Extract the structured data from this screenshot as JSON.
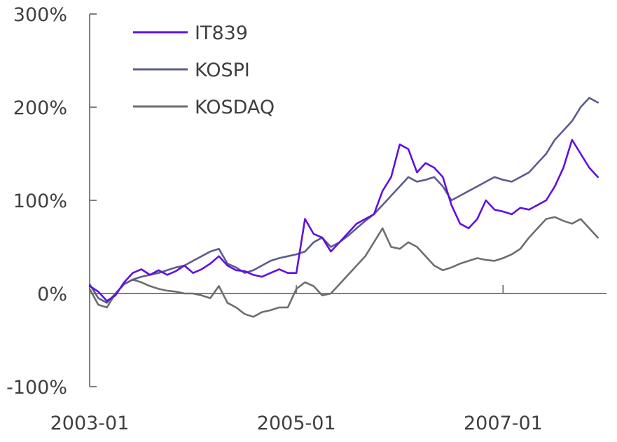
{
  "chart_data": {
    "type": "line",
    "title": "",
    "xlabel": "",
    "ylabel": "",
    "ylim": [
      -100,
      300
    ],
    "yticks": [
      -100,
      0,
      100,
      200,
      300
    ],
    "ytick_labels": [
      "-100%",
      "0%",
      "100%",
      "200%",
      "300%"
    ],
    "xlim": [
      "2003-01",
      "2008-01"
    ],
    "xticks": [
      "2003-01",
      "2005-01",
      "2007-01"
    ],
    "grid": false,
    "legend_position": "top-left",
    "series": [
      {
        "name": "IT839",
        "color": "#6010e0",
        "x": [
          "2003-01",
          "2003-02",
          "2003-03",
          "2003-04",
          "2003-05",
          "2003-06",
          "2003-07",
          "2003-08",
          "2003-09",
          "2003-10",
          "2003-11",
          "2003-12",
          "2004-01",
          "2004-02",
          "2004-03",
          "2004-04",
          "2004-05",
          "2004-06",
          "2004-07",
          "2004-08",
          "2004-09",
          "2004-10",
          "2004-11",
          "2004-12",
          "2005-01",
          "2005-02",
          "2005-03",
          "2005-04",
          "2005-05",
          "2005-06",
          "2005-07",
          "2005-08",
          "2005-09",
          "2005-10",
          "2005-11",
          "2005-12",
          "2006-01",
          "2006-02",
          "2006-03",
          "2006-04",
          "2006-05",
          "2006-06",
          "2006-07",
          "2006-08",
          "2006-09",
          "2006-10",
          "2006-11",
          "2006-12",
          "2007-01",
          "2007-02",
          "2007-03",
          "2007-04",
          "2007-05",
          "2007-06",
          "2007-07",
          "2007-08",
          "2007-09",
          "2007-10",
          "2007-11",
          "2007-12"
        ],
        "values": [
          8,
          2,
          -8,
          -2,
          12,
          22,
          26,
          20,
          25,
          20,
          24,
          30,
          22,
          26,
          32,
          40,
          30,
          25,
          24,
          20,
          18,
          22,
          26,
          22,
          22,
          80,
          64,
          60,
          45,
          55,
          65,
          75,
          80,
          85,
          110,
          125,
          160,
          155,
          130,
          140,
          135,
          125,
          95,
          75,
          70,
          80,
          100,
          90,
          88,
          85,
          92,
          90,
          95,
          100,
          115,
          135,
          165,
          150,
          135,
          125
        ]
      },
      {
        "name": "KOSPI",
        "color": "#5b5b8f",
        "x": [
          "2003-01",
          "2003-02",
          "2003-03",
          "2003-04",
          "2003-05",
          "2003-06",
          "2003-07",
          "2003-08",
          "2003-09",
          "2003-10",
          "2003-11",
          "2003-12",
          "2004-01",
          "2004-02",
          "2004-03",
          "2004-04",
          "2004-05",
          "2004-06",
          "2004-07",
          "2004-08",
          "2004-09",
          "2004-10",
          "2004-11",
          "2004-12",
          "2005-01",
          "2005-02",
          "2005-03",
          "2005-04",
          "2005-05",
          "2005-06",
          "2005-07",
          "2005-08",
          "2005-09",
          "2005-10",
          "2005-11",
          "2005-12",
          "2006-01",
          "2006-02",
          "2006-03",
          "2006-04",
          "2006-05",
          "2006-06",
          "2006-07",
          "2006-08",
          "2006-09",
          "2006-10",
          "2006-11",
          "2006-12",
          "2007-01",
          "2007-02",
          "2007-03",
          "2007-04",
          "2007-05",
          "2007-06",
          "2007-07",
          "2007-08",
          "2007-09",
          "2007-10",
          "2007-11",
          "2007-12"
        ],
        "values": [
          10,
          -5,
          -10,
          0,
          10,
          15,
          18,
          20,
          22,
          25,
          28,
          30,
          35,
          40,
          45,
          48,
          32,
          28,
          22,
          25,
          30,
          35,
          38,
          40,
          42,
          45,
          55,
          60,
          50,
          55,
          62,
          70,
          78,
          85,
          95,
          105,
          115,
          125,
          120,
          122,
          125,
          115,
          100,
          105,
          110,
          115,
          120,
          125,
          122,
          120,
          125,
          130,
          140,
          150,
          165,
          175,
          185,
          200,
          210,
          205
        ]
      },
      {
        "name": "KOSDAQ",
        "color": "#6e6e6e",
        "x": [
          "2003-01",
          "2003-02",
          "2003-03",
          "2003-04",
          "2003-05",
          "2003-06",
          "2003-07",
          "2003-08",
          "2003-09",
          "2003-10",
          "2003-11",
          "2003-12",
          "2004-01",
          "2004-02",
          "2004-03",
          "2004-04",
          "2004-05",
          "2004-06",
          "2004-07",
          "2004-08",
          "2004-09",
          "2004-10",
          "2004-11",
          "2004-12",
          "2005-01",
          "2005-02",
          "2005-03",
          "2005-04",
          "2005-05",
          "2005-06",
          "2005-07",
          "2005-08",
          "2005-09",
          "2005-10",
          "2005-11",
          "2005-12",
          "2006-01",
          "2006-02",
          "2006-03",
          "2006-04",
          "2006-05",
          "2006-06",
          "2006-07",
          "2006-08",
          "2006-09",
          "2006-10",
          "2006-11",
          "2006-12",
          "2007-01",
          "2007-02",
          "2007-03",
          "2007-04",
          "2007-05",
          "2007-06",
          "2007-07",
          "2007-08",
          "2007-09",
          "2007-10",
          "2007-11",
          "2007-12"
        ],
        "values": [
          5,
          -12,
          -15,
          0,
          10,
          15,
          12,
          8,
          5,
          3,
          2,
          0,
          0,
          -2,
          -5,
          8,
          -10,
          -15,
          -22,
          -25,
          -20,
          -18,
          -15,
          -15,
          5,
          12,
          8,
          -2,
          0,
          10,
          20,
          30,
          40,
          55,
          70,
          50,
          48,
          55,
          50,
          40,
          30,
          25,
          28,
          32,
          35,
          38,
          36,
          35,
          38,
          42,
          48,
          60,
          70,
          80,
          82,
          78,
          75,
          80,
          70,
          60
        ]
      }
    ]
  }
}
